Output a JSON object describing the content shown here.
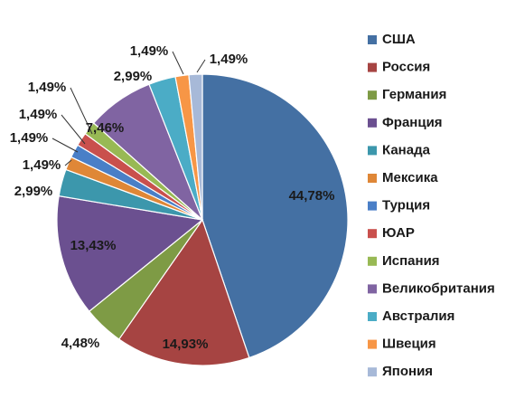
{
  "chart_data": {
    "type": "pie",
    "title": "",
    "legend_position": "right",
    "categories": [
      "США",
      "Россия",
      "Германия",
      "Франция",
      "Канада",
      "Мексика",
      "Турция",
      "ЮАР",
      "Испания",
      "Великобритания",
      "Австралия",
      "Швеция",
      "Япония"
    ],
    "values": [
      44.78,
      14.93,
      4.48,
      13.43,
      2.99,
      1.49,
      1.49,
      1.49,
      1.49,
      7.46,
      2.99,
      1.49,
      1.49
    ],
    "labels": [
      "44,78%",
      "14,93%",
      "4,48%",
      "13,43%",
      "2,99%",
      "1,49%",
      "1,49%",
      "1,49%",
      "1,49%",
      "7,46%",
      "2,99%",
      "1,49%",
      "1,49%"
    ],
    "colors": [
      "#4470A3",
      "#A64442",
      "#7E9B45",
      "#6B5090",
      "#3C97AC",
      "#DF8737",
      "#4A7FC7",
      "#C9504D",
      "#98B954",
      "#8064A2",
      "#4BACC6",
      "#F79646",
      "#A7B9D8"
    ]
  }
}
